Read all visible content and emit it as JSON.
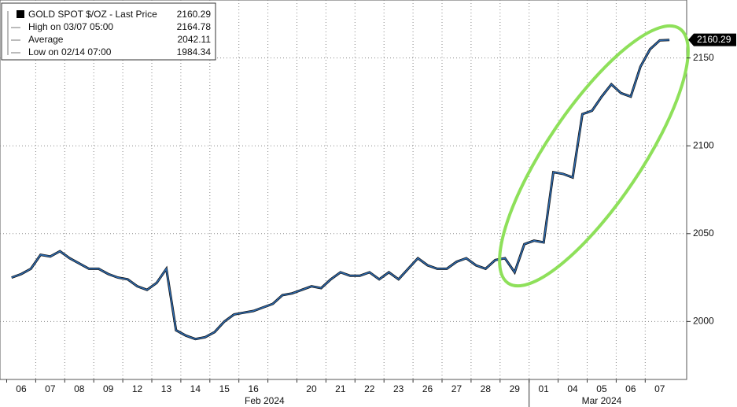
{
  "chart_data": {
    "type": "line",
    "categories": [
      null,
      "06",
      null,
      null,
      "07",
      null,
      null,
      "08",
      null,
      null,
      "09",
      null,
      null,
      "12",
      null,
      null,
      "13",
      null,
      null,
      "14",
      null,
      null,
      "15",
      null,
      null,
      "16",
      null,
      null,
      null,
      null,
      null,
      "20",
      null,
      null,
      "21",
      null,
      null,
      "22",
      null,
      null,
      "23",
      null,
      null,
      "26",
      null,
      null,
      "27",
      null,
      null,
      "28",
      null,
      null,
      "29",
      null,
      null,
      "01",
      null,
      null,
      "04",
      null,
      null,
      "05",
      null,
      null,
      "06",
      null,
      null,
      "07",
      null
    ],
    "x_groups": [
      "Feb 2024",
      "Mar 2024"
    ],
    "series": [
      {
        "name": "GOLD SPOT $/OZ - Last Price",
        "color": "#2e6db4",
        "values": [
          2025,
          2027,
          2030,
          2038,
          2037,
          2040,
          2036,
          2033,
          2030,
          2030,
          2027,
          2025,
          2024,
          2020,
          2018,
          2022,
          2030,
          1995,
          1992,
          1990,
          1991,
          1994,
          2000,
          2004,
          2005,
          2006,
          2008,
          2010,
          2015,
          2016,
          2018,
          2020,
          2019,
          2024,
          2028,
          2026,
          2026,
          2028,
          2024,
          2028,
          2024,
          2030,
          2036,
          2032,
          2030,
          2030,
          2034,
          2036,
          2032,
          2030,
          2035,
          2036,
          2028,
          2044,
          2046,
          2045,
          2085,
          2084,
          2082,
          2118,
          2120,
          2128,
          2135,
          2130,
          2128,
          2145,
          2155,
          2160,
          2160.29
        ]
      }
    ],
    "legend": [
      {
        "label": "GOLD SPOT $/OZ - Last Price",
        "value": 2160.29
      },
      {
        "label": "High on 03/07 05:00",
        "value": 2164.78
      },
      {
        "label": "Average",
        "value": 2042.11
      },
      {
        "label": "Low on 02/14 07:00",
        "value": 1984.34
      }
    ],
    "ylim": [
      1967,
      2183
    ],
    "yticks": [
      2000,
      2050,
      2100,
      2150
    ],
    "grid": true
  }
}
